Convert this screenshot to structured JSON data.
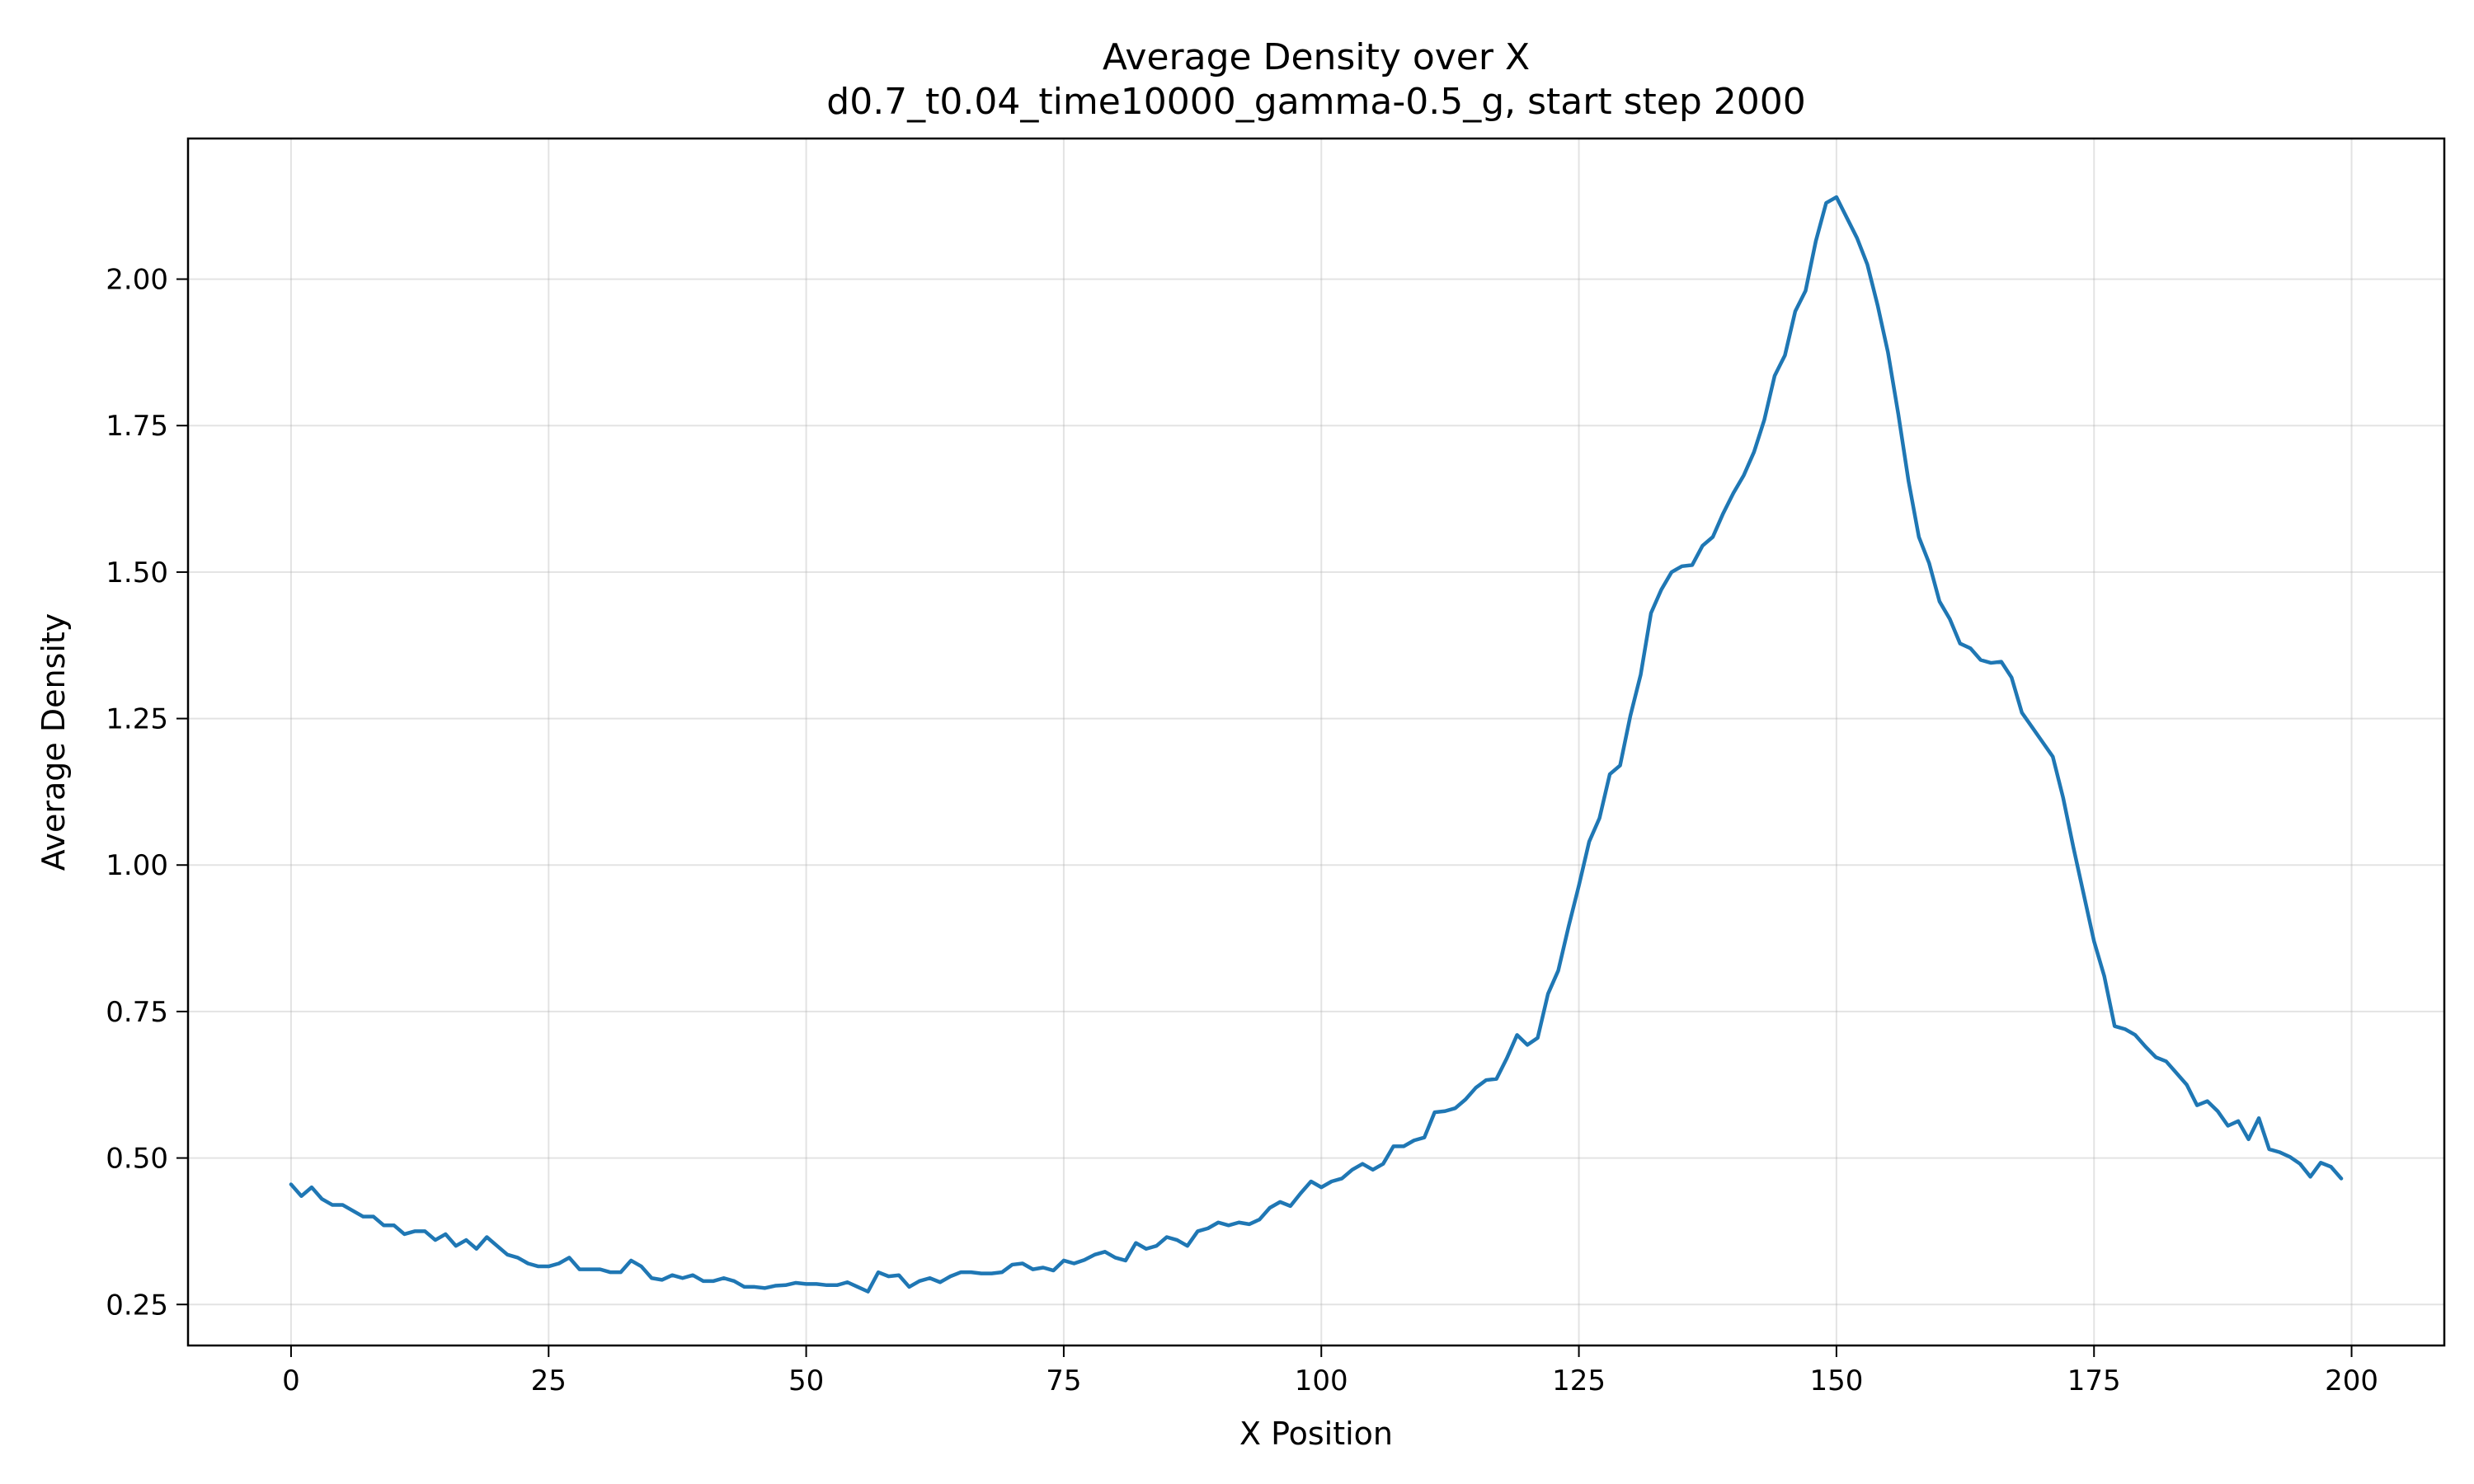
{
  "chart_data": {
    "type": "line",
    "title": "Average Density over X",
    "subtitle": "d0.7_t0.04_time10000_gamma-0.5_g, start step 2000",
    "xlabel": "X Position",
    "ylabel": "Average Density",
    "xlim": [
      -10,
      209
    ],
    "ylim": [
      0.18,
      2.24
    ],
    "xticks": [
      0,
      25,
      50,
      75,
      100,
      125,
      150,
      175,
      200
    ],
    "yticks": [
      0.25,
      0.5,
      0.75,
      1.0,
      1.25,
      1.5,
      1.75,
      2.0
    ],
    "ytick_labels": [
      "0.25",
      "0.50",
      "0.75",
      "1.00",
      "1.25",
      "1.50",
      "1.75",
      "2.00"
    ],
    "grid": true,
    "color": "#1f77b4",
    "series": [
      {
        "x": [
          0,
          1,
          2,
          3,
          4,
          5,
          6,
          7,
          8,
          9,
          10,
          11,
          12,
          13,
          14,
          15,
          16,
          17,
          18,
          19,
          20,
          21,
          22,
          23,
          24,
          25,
          26,
          27,
          28,
          29,
          30,
          31,
          32,
          33,
          34,
          35,
          36,
          37,
          38,
          39,
          40,
          41,
          42,
          43,
          44,
          45,
          46,
          47,
          48,
          49,
          50,
          51,
          52,
          53,
          54,
          55,
          56,
          57,
          58,
          59,
          60,
          61,
          62,
          63,
          64,
          65,
          66,
          67,
          68,
          69,
          70,
          71,
          72,
          73,
          74,
          75,
          76,
          77,
          78,
          79,
          80,
          81,
          82,
          83,
          84,
          85,
          86,
          87,
          88,
          89,
          90,
          91,
          92,
          93,
          94,
          95,
          96,
          97,
          98,
          99,
          100,
          101,
          102,
          103,
          104,
          105,
          106,
          107,
          108,
          109,
          110,
          111,
          112,
          113,
          114,
          115,
          116,
          117,
          118,
          119,
          120,
          121,
          122,
          123,
          124,
          125,
          126,
          127,
          128,
          129,
          130,
          131,
          132,
          133,
          134,
          135,
          136,
          137,
          138,
          139,
          140,
          141,
          142,
          143,
          144,
          145,
          146,
          147,
          148,
          149,
          150,
          151,
          152,
          153,
          154,
          155,
          156,
          157,
          158,
          159,
          160,
          161,
          162,
          163,
          164,
          165,
          166,
          167,
          168,
          169,
          170,
          171,
          172,
          173,
          174,
          175,
          176,
          177,
          178,
          179,
          180,
          181,
          182,
          183,
          184,
          185,
          186,
          187,
          188,
          189,
          190,
          191,
          192,
          193,
          194,
          195,
          196,
          197,
          198,
          199
        ],
        "y": [
          0.455,
          0.435,
          0.45,
          0.43,
          0.42,
          0.42,
          0.41,
          0.4,
          0.4,
          0.385,
          0.385,
          0.37,
          0.375,
          0.375,
          0.36,
          0.37,
          0.35,
          0.36,
          0.345,
          0.365,
          0.35,
          0.335,
          0.33,
          0.32,
          0.315,
          0.315,
          0.32,
          0.33,
          0.31,
          0.31,
          0.31,
          0.305,
          0.305,
          0.325,
          0.315,
          0.295,
          0.292,
          0.3,
          0.295,
          0.3,
          0.29,
          0.29,
          0.295,
          0.29,
          0.28,
          0.28,
          0.278,
          0.282,
          0.283,
          0.287,
          0.285,
          0.285,
          0.283,
          0.283,
          0.288,
          0.28,
          0.272,
          0.305,
          0.298,
          0.3,
          0.28,
          0.29,
          0.295,
          0.288,
          0.298,
          0.305,
          0.305,
          0.303,
          0.303,
          0.305,
          0.318,
          0.32,
          0.31,
          0.313,
          0.308,
          0.325,
          0.32,
          0.326,
          0.335,
          0.34,
          0.33,
          0.325,
          0.355,
          0.345,
          0.35,
          0.365,
          0.36,
          0.35,
          0.375,
          0.38,
          0.39,
          0.385,
          0.39,
          0.387,
          0.395,
          0.415,
          0.425,
          0.418,
          0.44,
          0.46,
          0.45,
          0.46,
          0.465,
          0.48,
          0.49,
          0.48,
          0.49,
          0.52,
          0.52,
          0.53,
          0.535,
          0.578,
          0.58,
          0.585,
          0.6,
          0.62,
          0.633,
          0.635,
          0.67,
          0.71,
          0.693,
          0.705,
          0.78,
          0.82,
          0.895,
          0.965,
          1.04,
          1.08,
          1.155,
          1.17,
          1.255,
          1.325,
          1.43,
          1.47,
          1.5,
          1.51,
          1.512,
          1.545,
          1.56,
          1.6,
          1.635,
          1.665,
          1.705,
          1.76,
          1.835,
          1.87,
          1.945,
          1.98,
          2.065,
          2.13,
          2.14,
          2.105,
          2.07,
          2.025,
          1.955,
          1.875,
          1.77,
          1.655,
          1.56,
          1.515,
          1.45,
          1.42,
          1.378,
          1.37,
          1.35,
          1.345,
          1.347,
          1.32,
          1.26,
          1.235,
          1.21,
          1.185,
          1.115,
          1.03,
          0.95,
          0.87,
          0.81,
          0.725,
          0.72,
          0.71,
          0.69,
          0.672,
          0.665,
          0.645,
          0.625,
          0.59,
          0.597,
          0.58,
          0.555,
          0.563,
          0.532,
          0.568,
          0.515,
          0.51,
          0.502,
          0.49,
          0.468,
          0.492,
          0.485,
          0.465
        ]
      }
    ]
  }
}
